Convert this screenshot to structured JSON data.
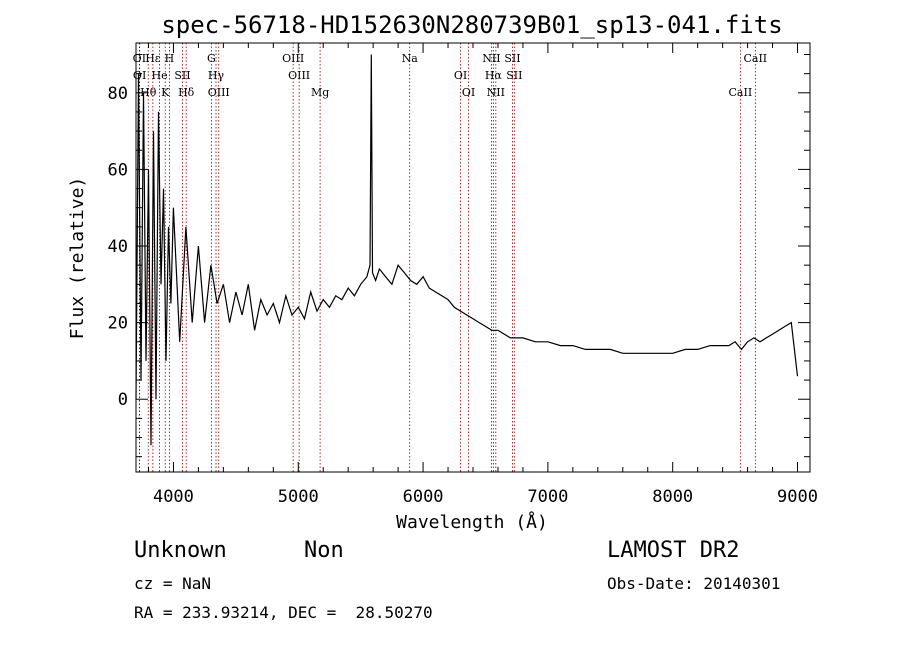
{
  "chart_data": {
    "type": "line",
    "title": "spec-56718-HD152630N280739B01_sp13-041.fits",
    "xlabel": "Wavelength (Å)",
    "ylabel": "Flux (relative)",
    "xlim": [
      3700,
      9100
    ],
    "ylim": [
      -19,
      93
    ],
    "xticks": [
      4000,
      5000,
      6000,
      7000,
      8000,
      9000
    ],
    "xtick_labels": [
      "4000",
      "5000",
      "6000",
      "7000",
      "8000",
      "9000"
    ],
    "yticks": [
      0,
      20,
      40,
      60,
      80
    ],
    "ytick_labels": [
      "0",
      "20",
      "40",
      "60",
      "80"
    ],
    "grid": false,
    "series": [
      {
        "x": [
          3700,
          3720,
          3740,
          3760,
          3780,
          3800,
          3820,
          3840,
          3860,
          3880,
          3900,
          3920,
          3940,
          3960,
          3980,
          4000,
          4050,
          4100,
          4150,
          4200,
          4250,
          4300,
          4350,
          4400,
          4450,
          4500,
          4550,
          4600,
          4650,
          4700,
          4750,
          4800,
          4850,
          4900,
          4950,
          5000,
          5050,
          5100,
          5150,
          5200,
          5250,
          5300,
          5350,
          5400,
          5450,
          5500,
          5550,
          5575,
          5585,
          5595,
          5620,
          5650,
          5700,
          5750,
          5800,
          5850,
          5900,
          5950,
          6000,
          6050,
          6100,
          6150,
          6200,
          6250,
          6300,
          6350,
          6400,
          6450,
          6500,
          6550,
          6600,
          6650,
          6700,
          6750,
          6800,
          6900,
          7000,
          7100,
          7200,
          7300,
          7400,
          7500,
          7600,
          7700,
          7800,
          7900,
          8000,
          8100,
          8200,
          8300,
          8400,
          8450,
          8500,
          8550,
          8600,
          8650,
          8700,
          8750,
          8800,
          8850,
          8900,
          8950,
          9000
        ],
        "y": [
          0,
          85,
          5,
          80,
          10,
          60,
          -12,
          70,
          0,
          75,
          30,
          55,
          10,
          45,
          25,
          50,
          15,
          45,
          20,
          40,
          20,
          35,
          25,
          30,
          20,
          28,
          22,
          30,
          18,
          26,
          22,
          25,
          20,
          27,
          22,
          24,
          21,
          28,
          23,
          26,
          24,
          27,
          26,
          29,
          27,
          30,
          32,
          35,
          90,
          33,
          31,
          34,
          32,
          30,
          35,
          33,
          31,
          30,
          32,
          29,
          28,
          27,
          26,
          24,
          23,
          22,
          21,
          20,
          19,
          18,
          18,
          17,
          16,
          16,
          16,
          15,
          15,
          14,
          14,
          13,
          13,
          13,
          12,
          12,
          12,
          12,
          12,
          13,
          13,
          14,
          14,
          14,
          15,
          13,
          15,
          16,
          15,
          16,
          17,
          18,
          19,
          20,
          6
        ]
      }
    ],
    "lines": [
      {
        "label": "OI",
        "x": 3727
      },
      {
        "label": "OI",
        "x": 3729
      },
      {
        "label": "Hθ",
        "x": 3798
      },
      {
        "label": "Hε",
        "x": 3835
      },
      {
        "label": "He",
        "x": 3889
      },
      {
        "label": "K",
        "x": 3934
      },
      {
        "label": "H",
        "x": 3968
      },
      {
        "label": "SII",
        "x": 4072
      },
      {
        "label": "Hδ",
        "x": 4102
      },
      {
        "label": "G",
        "x": 4304
      },
      {
        "label": "Hγ",
        "x": 4341
      },
      {
        "label": "OIII",
        "x": 4363
      },
      {
        "label": "OIII",
        "x": 4959
      },
      {
        "label": "OIII",
        "x": 5007
      },
      {
        "label": "Mg",
        "x": 5175
      },
      {
        "label": "Na",
        "x": 5893
      },
      {
        "label": "OI",
        "x": 6300
      },
      {
        "label": "OI",
        "x": 6364
      },
      {
        "label": "NII",
        "x": 6548
      },
      {
        "label": "Hα",
        "x": 6563
      },
      {
        "label": "NII",
        "x": 6583
      },
      {
        "label": "SII",
        "x": 6716
      },
      {
        "label": "SII",
        "x": 6731
      },
      {
        "label": "CaII",
        "x": 8542
      },
      {
        "label": "CaII",
        "x": 8662
      }
    ]
  },
  "footer": {
    "class": "Unknown",
    "subclass": "Non",
    "cz": "cz = NaN",
    "radec": "RA = 233.93214, DEC =  28.50270",
    "survey": "LAMOST DR2",
    "obsdate": "Obs-Date: 20140301"
  },
  "colors": {
    "foreground": "#000000",
    "line_marker": "#8b0000",
    "background": "#ffffff"
  }
}
